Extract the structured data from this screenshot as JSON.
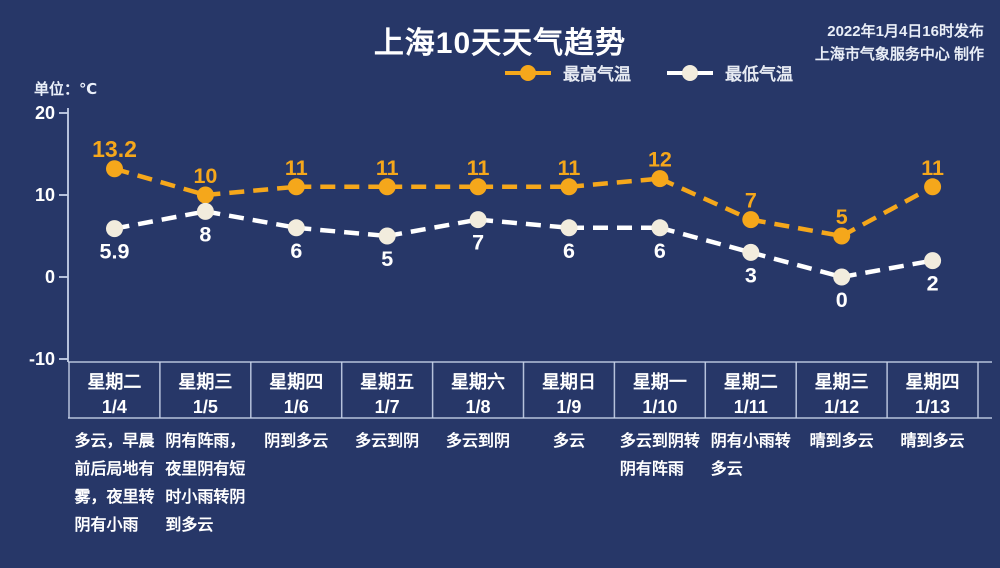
{
  "title": "上海10天天气趋势",
  "publisher": {
    "line1": "2022年1月4日16时发布",
    "line2": "上海市气象服务中心 制作"
  },
  "unit_label": "单位：℃",
  "colors": {
    "background": "#273768",
    "high_temp": "#F5A71B",
    "low_temp_marker": "#F2ECDD",
    "low_temp_line": "#FFFFFF",
    "axis": "#C6D1E8",
    "text": "#FFFFFF"
  },
  "chart_data": {
    "type": "line",
    "title": "上海10天天气趋势",
    "ylabel": "单位：℃",
    "yticks": [
      20,
      10,
      0,
      -10
    ],
    "ylim": [
      -13,
      20
    ],
    "grid": false,
    "legend_position": "top-center",
    "line_style": "dashed",
    "categories": [
      {
        "weekday": "星期二",
        "date": "1/4"
      },
      {
        "weekday": "星期三",
        "date": "1/5"
      },
      {
        "weekday": "星期四",
        "date": "1/6"
      },
      {
        "weekday": "星期五",
        "date": "1/7"
      },
      {
        "weekday": "星期六",
        "date": "1/8"
      },
      {
        "weekday": "星期日",
        "date": "1/9"
      },
      {
        "weekday": "星期一",
        "date": "1/10"
      },
      {
        "weekday": "星期二",
        "date": "1/11"
      },
      {
        "weekday": "星期三",
        "date": "1/12"
      },
      {
        "weekday": "星期四",
        "date": "1/13"
      }
    ],
    "series": [
      {
        "name": "最高气温",
        "color": "#F5A71B",
        "values": [
          13.2,
          10,
          11,
          11,
          11,
          11,
          12,
          7,
          5,
          11
        ]
      },
      {
        "name": "最低气温",
        "color": "#F2ECDD",
        "values": [
          5.9,
          8,
          6,
          5,
          7,
          6,
          6,
          3,
          0,
          2
        ]
      }
    ],
    "weather": [
      [
        "多云，早晨",
        "前后局地有",
        "雾，夜里转",
        "阴有小雨"
      ],
      [
        "阴有阵雨，",
        "夜里阴有短",
        "时小雨转阴",
        "到多云"
      ],
      [
        "阴到多云"
      ],
      [
        "多云到阴"
      ],
      [
        "多云到阴"
      ],
      [
        "多云"
      ],
      [
        "多云到阴转",
        "阴有阵雨"
      ],
      [
        "阴有小雨转",
        "多云"
      ],
      [
        "晴到多云"
      ],
      [
        "晴到多云"
      ]
    ]
  }
}
